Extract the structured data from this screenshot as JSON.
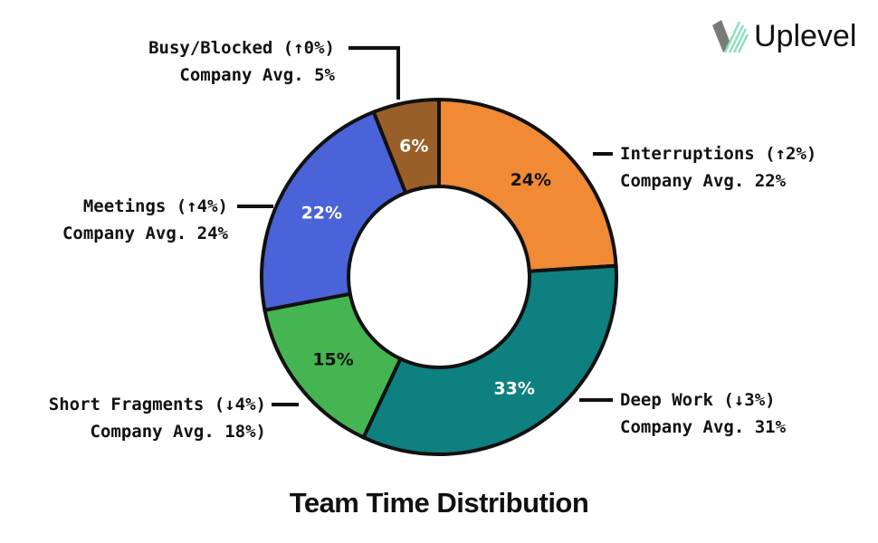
{
  "chart_data": {
    "type": "pie",
    "subtype": "donut",
    "title": "Team Time Distribution",
    "start": "top, clockwise",
    "slices": [
      {
        "name": "Interruptions",
        "value": 24,
        "label": "24%",
        "change": "↑ 2%",
        "company_avg": "Company Avg. 22%",
        "color": "#F08A35",
        "text_color": "#111111"
      },
      {
        "name": "Deep Work",
        "value": 33,
        "label": "33%",
        "change": "↓ 3%",
        "company_avg": "Company Avg. 31%",
        "color": "#0F8080",
        "text_color": "#FFFFFF"
      },
      {
        "name": "Short Fragments",
        "value": 15,
        "label": "15%",
        "change": "↓ 4%",
        "company_avg": "Company Avg. 18%)",
        "color": "#45B552",
        "text_color": "#111111"
      },
      {
        "name": "Meetings",
        "value": 22,
        "label": "22%",
        "change": "↑ 4%",
        "company_avg": "Company Avg. 24%",
        "color": "#4A63D9",
        "text_color": "#FFFFFF"
      },
      {
        "name": "Busy/Blocked",
        "value": 6,
        "label": "6%",
        "change": "↑ 0%",
        "company_avg": "Company Avg. 5%",
        "color": "#9A5F28",
        "text_color": "#FFFFFF"
      }
    ]
  },
  "callouts": {
    "busy": {
      "line1": "Busy/Blocked (↑0%)",
      "line2": "Company Avg. 5%"
    },
    "interruptions": {
      "line1": "Interruptions (↑2%)",
      "line2": "Company Avg. 22%"
    },
    "meetings": {
      "line1": "Meetings (↑4%)",
      "line2": "Company Avg. 24%"
    },
    "fragments": {
      "line1": "Short Fragments (↓4%)",
      "line2": "Company Avg. 18%)"
    },
    "deep": {
      "line1": "Deep Work (↓3%)",
      "line2": "Company Avg. 31%"
    }
  },
  "brand": {
    "name": "Uplevel"
  }
}
